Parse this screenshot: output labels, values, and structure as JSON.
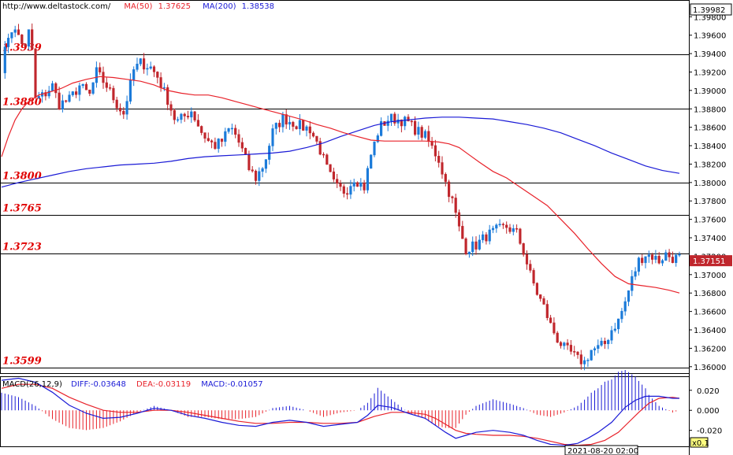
{
  "header": {
    "source_url": "http://www.deltastock.com/",
    "ma50_label": "MA(50)",
    "ma50_value": "1.37625",
    "ma200_label": "MA(200)",
    "ma200_value": "1.38538"
  },
  "macd_header": {
    "name": "MACD(26,12,9)",
    "diff": "DIFF:-0.03648",
    "dea": "DEA:-0.03119",
    "macd": "MACD:-0.01057"
  },
  "footer": {
    "timestamp": "2021-08-20 02:00",
    "zoom": "x0.1"
  },
  "colors": {
    "up": "#1a7ad9",
    "down": "#c0262c",
    "ma50": "#e8222a",
    "ma200": "#1a1ad6",
    "level_text": "#e00000",
    "macd_diff": "#1a1ad6",
    "macd_dea": "#e8222a"
  },
  "chart_data": {
    "type": "candlestick",
    "price_panel": {
      "ylim": [
        1.3593,
        1.39982
      ],
      "y_ticks": [
        "1.39800",
        "1.39600",
        "1.39400",
        "1.39200",
        "1.39000",
        "1.38800",
        "1.38600",
        "1.38400",
        "1.38200",
        "1.38000",
        "1.37800",
        "1.37600",
        "1.37400",
        "1.37200",
        "1.37000",
        "1.36800",
        "1.36600",
        "1.36400",
        "1.36200",
        "1.36000"
      ],
      "top_price_label": "1.39982",
      "current_price_label": "1.37151",
      "levels": [
        {
          "value": 1.3939,
          "label": "1.3939"
        },
        {
          "value": 1.388,
          "label": "1.3880"
        },
        {
          "value": 1.38,
          "label": "1.3800"
        },
        {
          "value": 1.3765,
          "label": "1.3765"
        },
        {
          "value": 1.3723,
          "label": "1.3723"
        },
        {
          "value": 1.3599,
          "label": "1.3599"
        }
      ],
      "candle_count": 200,
      "anchors": [
        [
          0,
          1.3925
        ],
        [
          5,
          1.3968
        ],
        [
          10,
          1.396
        ],
        [
          14,
          1.3945
        ],
        [
          17,
          1.3972
        ],
        [
          20,
          1.389
        ],
        [
          25,
          1.3895
        ],
        [
          30,
          1.3905
        ],
        [
          34,
          1.3885
        ],
        [
          40,
          1.389
        ],
        [
          46,
          1.3905
        ],
        [
          52,
          1.3895
        ],
        [
          56,
          1.392
        ],
        [
          62,
          1.3905
        ],
        [
          68,
          1.3885
        ],
        [
          72,
          1.3875
        ],
        [
          78,
          1.3922
        ],
        [
          82,
          1.393
        ],
        [
          88,
          1.3925
        ],
        [
          92,
          1.3915
        ],
        [
          98,
          1.389
        ],
        [
          103,
          1.3865
        ],
        [
          108,
          1.3872
        ],
        [
          112,
          1.3878
        ],
        [
          118,
          1.3855
        ],
        [
          122,
          1.3845
        ],
        [
          126,
          1.384
        ],
        [
          130,
          1.3845
        ],
        [
          135,
          1.386
        ],
        [
          138,
          1.3852
        ],
        [
          142,
          1.3835
        ],
        [
          146,
          1.3815
        ],
        [
          150,
          1.3805
        ],
        [
          155,
          1.382
        ],
        [
          160,
          1.3855
        ],
        [
          166,
          1.387
        ],
        [
          172,
          1.3865
        ],
        [
          178,
          1.386
        ],
        [
          182,
          1.3858
        ],
        [
          187,
          1.384
        ],
        [
          192,
          1.3815
        ],
        [
          197,
          1.3795
        ],
        [
          203,
          1.379
        ],
        [
          208,
          1.3805
        ],
        [
          214,
          1.3795
        ],
        [
          218,
          1.383
        ],
        [
          223,
          1.386
        ],
        [
          229,
          1.387
        ],
        [
          235,
          1.3868
        ],
        [
          240,
          1.3865
        ],
        [
          244,
          1.3858
        ],
        [
          250,
          1.385
        ],
        [
          254,
          1.3838
        ],
        [
          258,
          1.3825
        ],
        [
          262,
          1.38
        ],
        [
          266,
          1.378
        ],
        [
          270,
          1.375
        ],
        [
          274,
          1.3728
        ],
        [
          280,
          1.3732
        ],
        [
          286,
          1.3742
        ],
        [
          292,
          1.3748
        ],
        [
          298,
          1.3752
        ],
        [
          304,
          1.3745
        ],
        [
          308,
          1.3725
        ],
        [
          312,
          1.37
        ],
        [
          316,
          1.368
        ],
        [
          320,
          1.3665
        ],
        [
          324,
          1.3645
        ],
        [
          328,
          1.363
        ],
        [
          332,
          1.362
        ],
        [
          336,
          1.3615
        ],
        [
          340,
          1.3608
        ],
        [
          344,
          1.3605
        ],
        [
          348,
          1.3618
        ],
        [
          352,
          1.362
        ],
        [
          356,
          1.3625
        ],
        [
          360,
          1.364
        ],
        [
          364,
          1.365
        ],
        [
          368,
          1.367
        ],
        [
          372,
          1.3695
        ],
        [
          376,
          1.3715
        ],
        [
          380,
          1.3722
        ],
        [
          384,
          1.372
        ],
        [
          388,
          1.3715
        ],
        [
          392,
          1.3722
        ],
        [
          396,
          1.3718
        ],
        [
          400,
          1.3718
        ]
      ],
      "ma50": [
        [
          0,
          1.3828
        ],
        [
          4,
          1.385
        ],
        [
          8,
          1.3868
        ],
        [
          12,
          1.388
        ],
        [
          16,
          1.3888
        ],
        [
          22,
          1.3895
        ],
        [
          28,
          1.3898
        ],
        [
          35,
          1.3902
        ],
        [
          42,
          1.3908
        ],
        [
          50,
          1.3912
        ],
        [
          58,
          1.3915
        ],
        [
          66,
          1.3914
        ],
        [
          74,
          1.3912
        ],
        [
          82,
          1.391
        ],
        [
          90,
          1.3906
        ],
        [
          98,
          1.39
        ],
        [
          106,
          1.3897
        ],
        [
          114,
          1.3895
        ],
        [
          122,
          1.3895
        ],
        [
          130,
          1.3892
        ],
        [
          138,
          1.3888
        ],
        [
          146,
          1.3884
        ],
        [
          154,
          1.388
        ],
        [
          162,
          1.3876
        ],
        [
          170,
          1.3872
        ],
        [
          178,
          1.3868
        ],
        [
          186,
          1.3863
        ],
        [
          194,
          1.3859
        ],
        [
          202,
          1.3854
        ],
        [
          210,
          1.385
        ],
        [
          218,
          1.3846
        ],
        [
          226,
          1.3845
        ],
        [
          234,
          1.3845
        ],
        [
          242,
          1.3845
        ],
        [
          250,
          1.3845
        ],
        [
          258,
          1.3844
        ],
        [
          264,
          1.3842
        ],
        [
          270,
          1.3838
        ],
        [
          276,
          1.383
        ],
        [
          282,
          1.3822
        ],
        [
          290,
          1.3812
        ],
        [
          298,
          1.3805
        ],
        [
          306,
          1.3795
        ],
        [
          314,
          1.3785
        ],
        [
          322,
          1.3775
        ],
        [
          330,
          1.376
        ],
        [
          338,
          1.3745
        ],
        [
          346,
          1.3728
        ],
        [
          354,
          1.3712
        ],
        [
          362,
          1.3698
        ],
        [
          370,
          1.369
        ],
        [
          378,
          1.3688
        ],
        [
          386,
          1.3686
        ],
        [
          394,
          1.3683
        ],
        [
          400,
          1.368
        ]
      ],
      "ma200": [
        [
          0,
          1.3795
        ],
        [
          10,
          1.38
        ],
        [
          20,
          1.3804
        ],
        [
          30,
          1.3808
        ],
        [
          40,
          1.3812
        ],
        [
          50,
          1.3815
        ],
        [
          60,
          1.3817
        ],
        [
          70,
          1.3819
        ],
        [
          80,
          1.382
        ],
        [
          90,
          1.3821
        ],
        [
          100,
          1.3823
        ],
        [
          110,
          1.3826
        ],
        [
          120,
          1.3828
        ],
        [
          130,
          1.3829
        ],
        [
          140,
          1.383
        ],
        [
          150,
          1.3831
        ],
        [
          160,
          1.3832
        ],
        [
          170,
          1.3834
        ],
        [
          180,
          1.3838
        ],
        [
          190,
          1.3843
        ],
        [
          200,
          1.385
        ],
        [
          210,
          1.3856
        ],
        [
          220,
          1.3862
        ],
        [
          230,
          1.3866
        ],
        [
          240,
          1.3868
        ],
        [
          250,
          1.387
        ],
        [
          260,
          1.3871
        ],
        [
          270,
          1.3871
        ],
        [
          280,
          1.387
        ],
        [
          290,
          1.3869
        ],
        [
          300,
          1.3866
        ],
        [
          310,
          1.3863
        ],
        [
          320,
          1.3859
        ],
        [
          330,
          1.3854
        ],
        [
          340,
          1.3847
        ],
        [
          350,
          1.384
        ],
        [
          360,
          1.3832
        ],
        [
          370,
          1.3825
        ],
        [
          380,
          1.3818
        ],
        [
          390,
          1.3813
        ],
        [
          400,
          1.381
        ]
      ]
    },
    "macd_panel": {
      "ylim": [
        -0.036,
        0.034
      ],
      "y_ticks": [
        "0.020",
        "0.000",
        "-0.020"
      ],
      "diff": [
        [
          0,
          0.03
        ],
        [
          10,
          0.032
        ],
        [
          20,
          0.028
        ],
        [
          30,
          0.018
        ],
        [
          40,
          0.005
        ],
        [
          50,
          -0.003
        ],
        [
          60,
          -0.008
        ],
        [
          70,
          -0.007
        ],
        [
          80,
          -0.003
        ],
        [
          90,
          0.002
        ],
        [
          100,
          0.0
        ],
        [
          110,
          -0.005
        ],
        [
          120,
          -0.008
        ],
        [
          130,
          -0.012
        ],
        [
          140,
          -0.015
        ],
        [
          150,
          -0.016
        ],
        [
          160,
          -0.012
        ],
        [
          170,
          -0.01
        ],
        [
          180,
          -0.012
        ],
        [
          190,
          -0.016
        ],
        [
          200,
          -0.014
        ],
        [
          210,
          -0.012
        ],
        [
          216,
          -0.005
        ],
        [
          222,
          0.005
        ],
        [
          230,
          0.003
        ],
        [
          240,
          -0.003
        ],
        [
          250,
          -0.008
        ],
        [
          256,
          -0.015
        ],
        [
          262,
          -0.022
        ],
        [
          268,
          -0.028
        ],
        [
          274,
          -0.025
        ],
        [
          280,
          -0.022
        ],
        [
          290,
          -0.02
        ],
        [
          300,
          -0.022
        ],
        [
          308,
          -0.025
        ],
        [
          316,
          -0.03
        ],
        [
          324,
          -0.034
        ],
        [
          332,
          -0.035
        ],
        [
          340,
          -0.033
        ],
        [
          346,
          -0.028
        ],
        [
          352,
          -0.022
        ],
        [
          360,
          -0.012
        ],
        [
          368,
          0.003
        ],
        [
          374,
          0.01
        ],
        [
          380,
          0.014
        ],
        [
          388,
          0.014
        ],
        [
          396,
          0.012
        ],
        [
          400,
          0.012
        ]
      ],
      "dea": [
        [
          0,
          0.022
        ],
        [
          10,
          0.026
        ],
        [
          20,
          0.026
        ],
        [
          30,
          0.022
        ],
        [
          40,
          0.013
        ],
        [
          50,
          0.006
        ],
        [
          60,
          0.0
        ],
        [
          70,
          -0.002
        ],
        [
          80,
          -0.002
        ],
        [
          90,
          0.0
        ],
        [
          100,
          0.0
        ],
        [
          110,
          -0.002
        ],
        [
          120,
          -0.005
        ],
        [
          130,
          -0.008
        ],
        [
          140,
          -0.011
        ],
        [
          150,
          -0.013
        ],
        [
          160,
          -0.013
        ],
        [
          170,
          -0.012
        ],
        [
          180,
          -0.012
        ],
        [
          190,
          -0.013
        ],
        [
          200,
          -0.013
        ],
        [
          210,
          -0.012
        ],
        [
          220,
          -0.006
        ],
        [
          230,
          -0.002
        ],
        [
          240,
          -0.002
        ],
        [
          250,
          -0.004
        ],
        [
          256,
          -0.008
        ],
        [
          262,
          -0.014
        ],
        [
          268,
          -0.02
        ],
        [
          274,
          -0.023
        ],
        [
          280,
          -0.024
        ],
        [
          290,
          -0.025
        ],
        [
          300,
          -0.025
        ],
        [
          308,
          -0.026
        ],
        [
          316,
          -0.028
        ],
        [
          324,
          -0.031
        ],
        [
          332,
          -0.034
        ],
        [
          340,
          -0.035
        ],
        [
          348,
          -0.034
        ],
        [
          356,
          -0.03
        ],
        [
          364,
          -0.022
        ],
        [
          370,
          -0.012
        ],
        [
          376,
          -0.002
        ],
        [
          382,
          0.007
        ],
        [
          388,
          0.012
        ],
        [
          396,
          0.013
        ],
        [
          400,
          0.012
        ]
      ]
    }
  }
}
